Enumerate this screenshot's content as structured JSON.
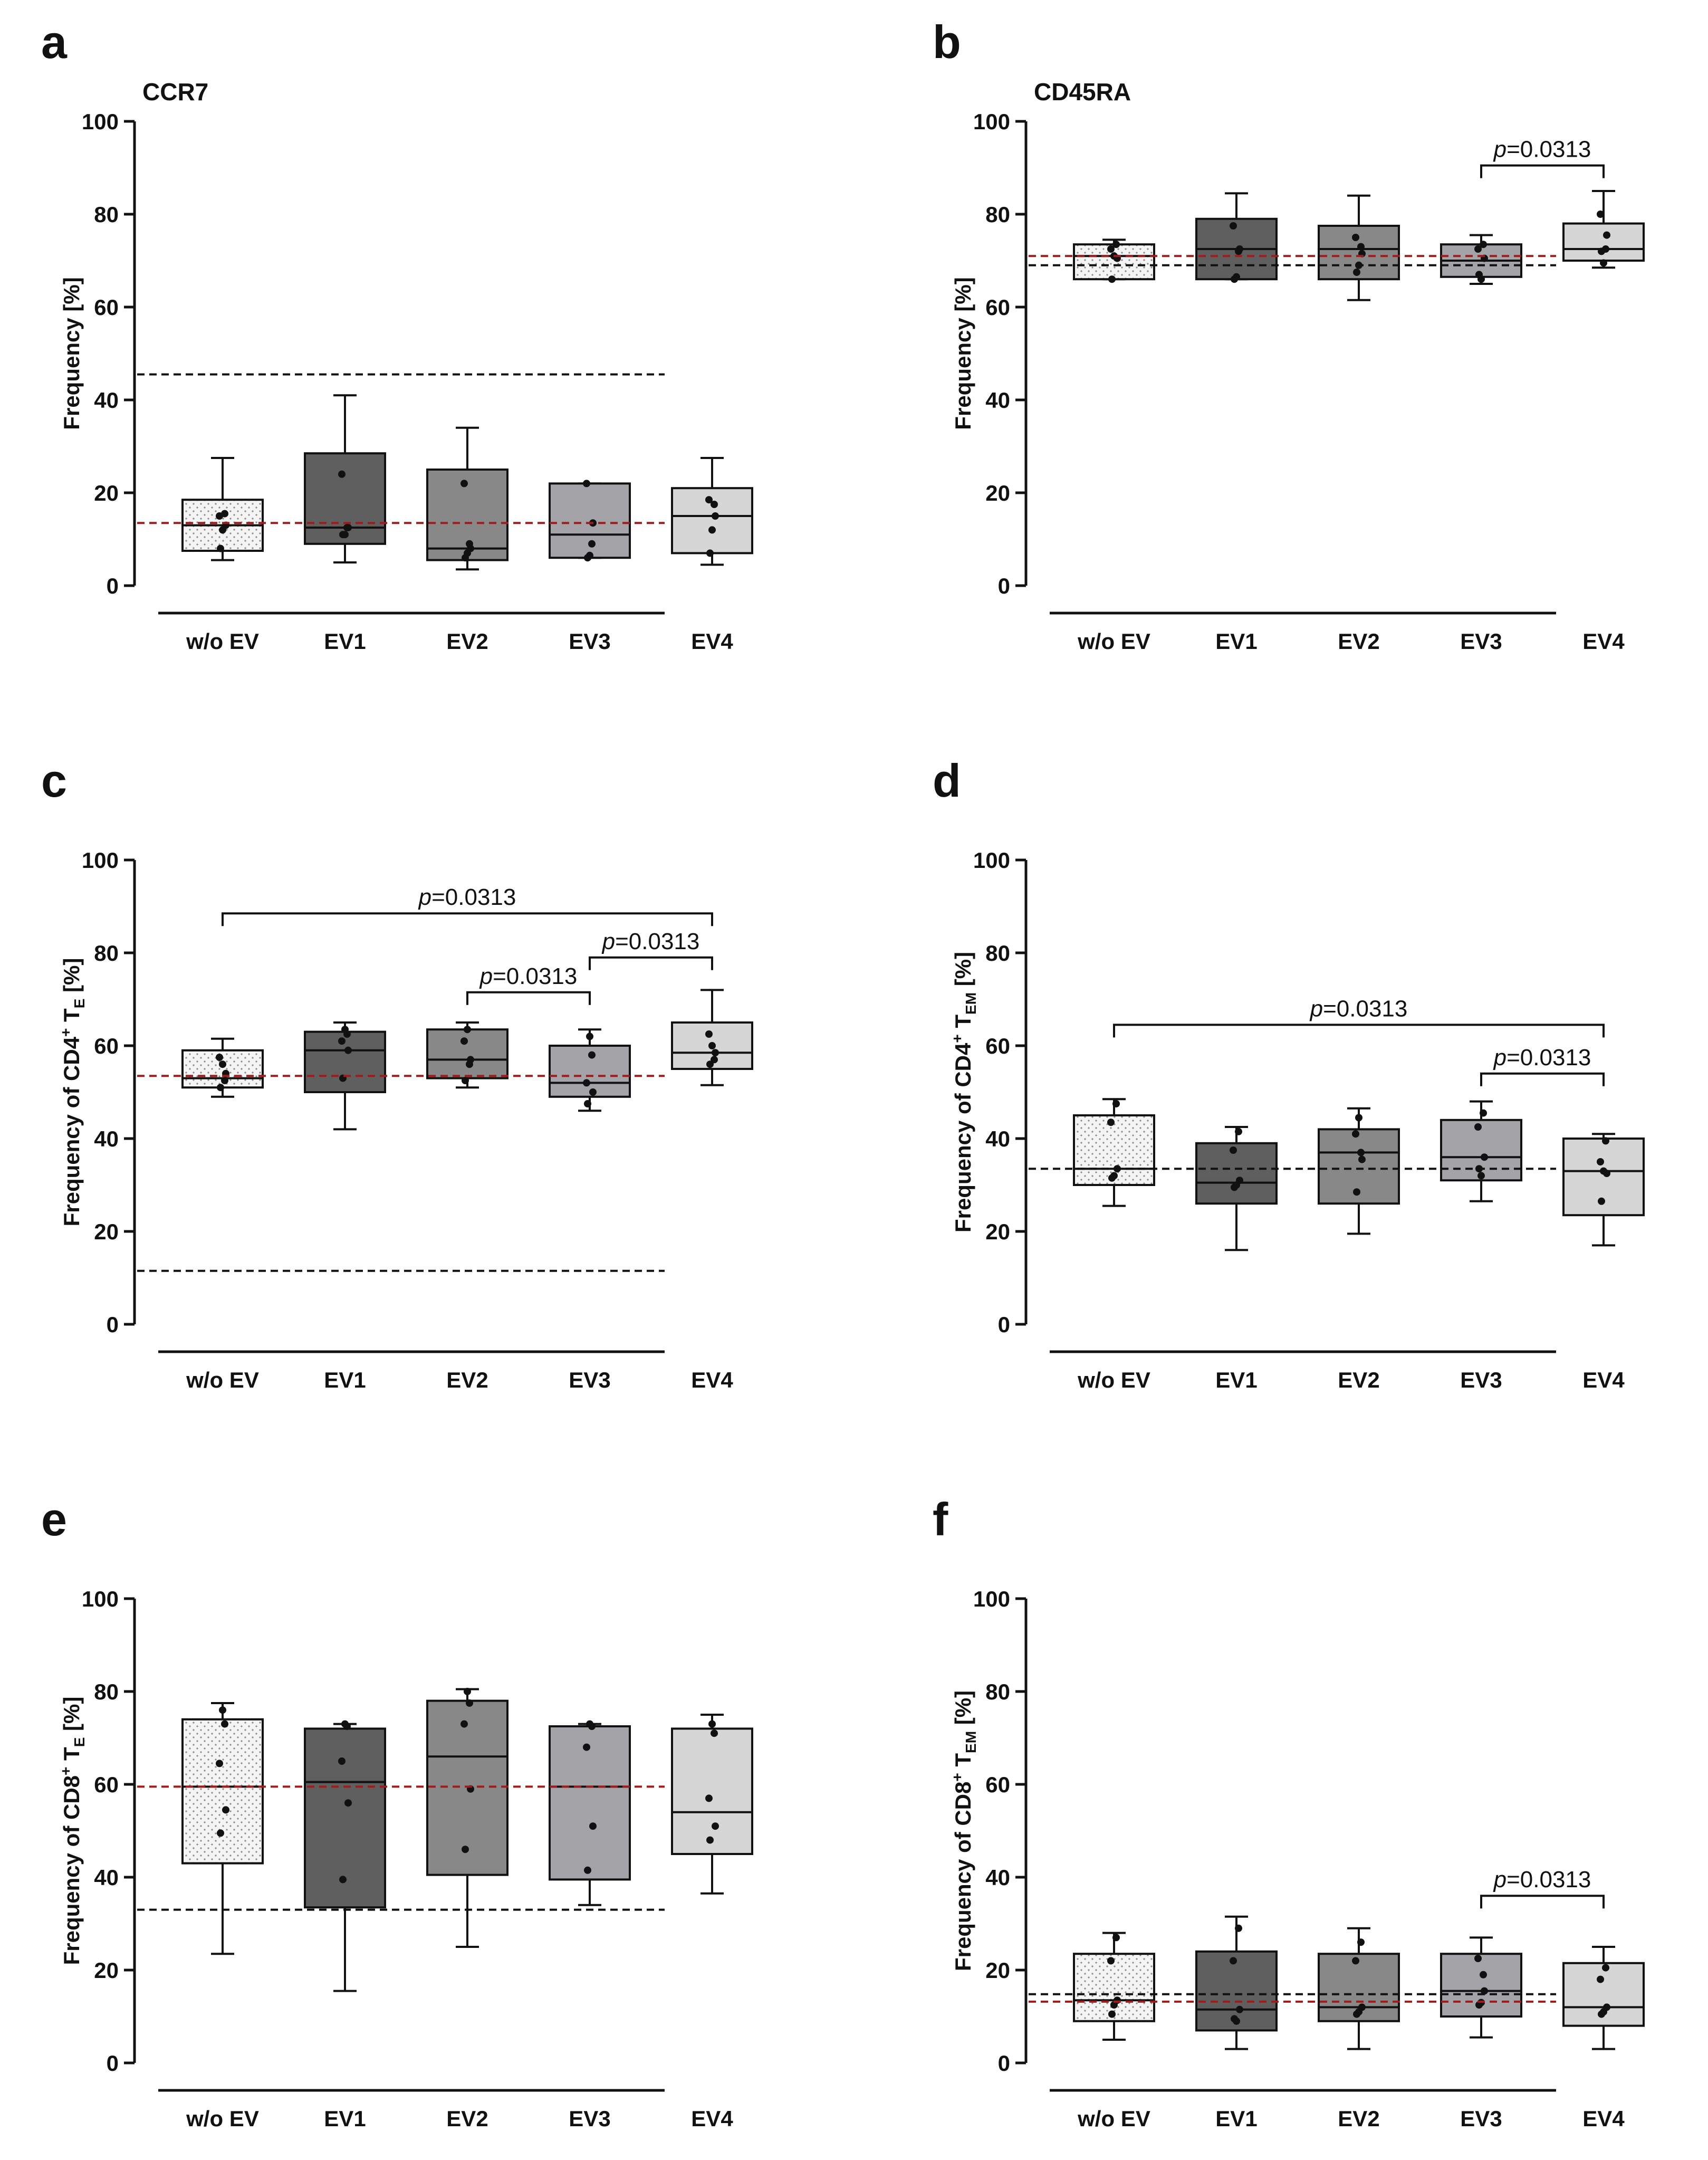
{
  "figure": {
    "background": "#ffffff"
  },
  "box_colors": {
    "w/o EV": "#f2f2f2",
    "EV1": "#5f5f5f",
    "EV2": "#888888",
    "EV3": "#a3a3a8",
    "EV4": "#d6d6d6"
  },
  "reference_line_colors": {
    "red": "#a01c1c",
    "black": "#111111"
  },
  "chart_data": [
    {
      "panel": "a",
      "type": "box",
      "title": "CCR7",
      "ylabel": "Frequency [%]",
      "ylim": [
        0,
        100
      ],
      "yticks": [
        0,
        20,
        40,
        60,
        80,
        100
      ],
      "categories": [
        "w/o EV",
        "EV1",
        "EV2",
        "EV3",
        "EV4"
      ],
      "boxes": [
        {
          "min": 5.5,
          "q1": 7.5,
          "median": 13,
          "q3": 18.5,
          "max": 27.5,
          "points": [
            8,
            13,
            15,
            15.5,
            12
          ]
        },
        {
          "min": 5,
          "q1": 9,
          "median": 12.5,
          "q3": 28.5,
          "max": 41,
          "points": [
            11,
            12.5,
            24,
            12.5,
            11
          ]
        },
        {
          "min": 3.5,
          "q1": 5.5,
          "median": 8,
          "q3": 25,
          "max": 34,
          "points": [
            6,
            8,
            22,
            9,
            7
          ]
        },
        {
          "min": 6,
          "q1": 6,
          "median": 11,
          "q3": 22,
          "max": 22,
          "points": [
            6,
            13.5,
            22,
            9,
            6.5
          ]
        },
        {
          "min": 4.5,
          "q1": 7,
          "median": 15,
          "q3": 21,
          "max": 27.5,
          "points": [
            7,
            15,
            18.5,
            17.5,
            12
          ]
        }
      ],
      "ref_lines": [
        {
          "y": 45.5,
          "color": "black"
        },
        {
          "y": 13.5,
          "color": "red"
        }
      ],
      "annotations": []
    },
    {
      "panel": "b",
      "type": "box",
      "title": "CD45RA",
      "ylabel": "Frequency [%]",
      "ylim": [
        0,
        100
      ],
      "yticks": [
        0,
        20,
        40,
        60,
        80,
        100
      ],
      "categories": [
        "w/o EV",
        "EV1",
        "EV2",
        "EV3",
        "EV4"
      ],
      "boxes": [
        {
          "min": 66,
          "q1": 66,
          "median": 71,
          "q3": 73.5,
          "max": 74.5,
          "points": [
            66,
            70.5,
            72.5,
            73.5,
            71
          ]
        },
        {
          "min": 66,
          "q1": 66,
          "median": 72.5,
          "q3": 79,
          "max": 84.5,
          "points": [
            66,
            72.5,
            77.5,
            72,
            66.5
          ]
        },
        {
          "min": 61.5,
          "q1": 66,
          "median": 72.5,
          "q3": 77.5,
          "max": 84,
          "points": [
            67.5,
            71.5,
            75,
            73,
            69
          ]
        },
        {
          "min": 65,
          "q1": 66.5,
          "median": 70,
          "q3": 73.5,
          "max": 75.5,
          "points": [
            67,
            70.5,
            72.5,
            73.5,
            66
          ]
        },
        {
          "min": 68.5,
          "q1": 70,
          "median": 72.5,
          "q3": 78,
          "max": 85,
          "points": [
            72,
            75.5,
            80,
            72.5,
            69.5
          ]
        }
      ],
      "ref_lines": [
        {
          "y": 71,
          "color": "red"
        },
        {
          "y": 69,
          "color": "black"
        }
      ],
      "annotations": [
        {
          "from": 3,
          "to": 4,
          "y": 90.5,
          "text": "=0.0313"
        }
      ]
    },
    {
      "panel": "c",
      "type": "box",
      "title": "",
      "ylabel": "Frequency of CD4⁺ T_E [%]",
      "ylabel_parts": {
        "main": "Frequency of CD4",
        "sup": "+",
        "t": " T",
        "sub": "E",
        "end": " [%]"
      },
      "ylim": [
        0,
        100
      ],
      "yticks": [
        0,
        20,
        40,
        60,
        80,
        100
      ],
      "categories": [
        "w/o EV",
        "EV1",
        "EV2",
        "EV3",
        "EV4"
      ],
      "boxes": [
        {
          "min": 49,
          "q1": 51,
          "median": 53,
          "q3": 59,
          "max": 61.5,
          "points": [
            51,
            54,
            57.5,
            52.5,
            56
          ]
        },
        {
          "min": 42,
          "q1": 50,
          "median": 59,
          "q3": 63,
          "max": 65,
          "points": [
            53,
            59,
            61,
            62.5,
            63.5
          ]
        },
        {
          "min": 51,
          "q1": 53,
          "median": 57,
          "q3": 63.5,
          "max": 65,
          "points": [
            52.5,
            57,
            61,
            56,
            63.5
          ]
        },
        {
          "min": 46,
          "q1": 49,
          "median": 52,
          "q3": 60,
          "max": 63.5,
          "points": [
            47.5,
            50,
            52,
            58,
            62
          ]
        },
        {
          "min": 51.5,
          "q1": 55,
          "median": 58.5,
          "q3": 65,
          "max": 72,
          "points": [
            56,
            58.5,
            62.5,
            57,
            60
          ]
        }
      ],
      "ref_lines": [
        {
          "y": 53.5,
          "color": "red"
        },
        {
          "y": 11.5,
          "color": "black"
        }
      ],
      "annotations": [
        {
          "from": 0,
          "to": 4,
          "y": 88.5,
          "text": "=0.0313"
        },
        {
          "from": 3,
          "to": 4,
          "y": 79,
          "text": "=0.0313"
        },
        {
          "from": 2,
          "to": 3,
          "y": 71.5,
          "text": "=0.0313"
        }
      ]
    },
    {
      "panel": "d",
      "type": "box",
      "title": "",
      "ylabel": "Frequency of CD4⁺ T_EM [%]",
      "ylabel_parts": {
        "main": "Frequency of CD4",
        "sup": "+",
        "t": " T",
        "sub": "EM",
        "end": " [%]"
      },
      "ylim": [
        0,
        100
      ],
      "yticks": [
        0,
        20,
        40,
        60,
        80,
        100
      ],
      "categories": [
        "w/o EV",
        "EV1",
        "EV2",
        "EV3",
        "EV4"
      ],
      "boxes": [
        {
          "min": 25.5,
          "q1": 30,
          "median": 33.5,
          "q3": 45,
          "max": 48.5,
          "points": [
            31.5,
            33.5,
            43.5,
            47.5,
            32
          ]
        },
        {
          "min": 16,
          "q1": 26,
          "median": 30.5,
          "q3": 39,
          "max": 42.5,
          "points": [
            29.5,
            31,
            37.5,
            41.5,
            30
          ]
        },
        {
          "min": 19.5,
          "q1": 26,
          "median": 37,
          "q3": 42,
          "max": 46.5,
          "points": [
            28.5,
            35.5,
            41,
            37,
            44.5
          ]
        },
        {
          "min": 26.5,
          "q1": 31,
          "median": 36,
          "q3": 44,
          "max": 48,
          "points": [
            33.5,
            36,
            42.5,
            45.5,
            32
          ]
        },
        {
          "min": 17,
          "q1": 23.5,
          "median": 33,
          "q3": 40,
          "max": 41,
          "points": [
            26.5,
            32.5,
            35,
            39.5,
            33
          ]
        }
      ],
      "ref_lines": [
        {
          "y": 33.5,
          "color": "black"
        }
      ],
      "annotations": [
        {
          "from": 0,
          "to": 4,
          "y": 64.5,
          "text": "=0.0313"
        },
        {
          "from": 3,
          "to": 4,
          "y": 54,
          "text": "=0.0313"
        }
      ]
    },
    {
      "panel": "e",
      "type": "box",
      "title": "",
      "ylabel": "Frequency of CD8⁺ T_E [%]",
      "ylabel_parts": {
        "main": "Frequency of CD8",
        "sup": "+",
        "t": " T",
        "sub": "E",
        "end": " [%]"
      },
      "ylim": [
        0,
        100
      ],
      "yticks": [
        0,
        20,
        40,
        60,
        80,
        100
      ],
      "categories": [
        "w/o EV",
        "EV1",
        "EV2",
        "EV3",
        "EV4"
      ],
      "boxes": [
        {
          "min": 23.5,
          "q1": 43,
          "median": 59.5,
          "q3": 74,
          "max": 77.5,
          "points": [
            49.5,
            54.5,
            64.5,
            73,
            76
          ]
        },
        {
          "min": 15.5,
          "q1": 33.5,
          "median": 60.5,
          "q3": 72,
          "max": 73,
          "points": [
            39.5,
            56,
            65,
            72.5,
            73
          ]
        },
        {
          "min": 25,
          "q1": 40.5,
          "median": 66,
          "q3": 78,
          "max": 80.5,
          "points": [
            46,
            59,
            73,
            77.5,
            80
          ]
        },
        {
          "min": 34,
          "q1": 39.5,
          "median": 59.5,
          "q3": 72.5,
          "max": 73,
          "points": [
            41.5,
            51,
            68,
            72.5,
            73
          ]
        },
        {
          "min": 36.5,
          "q1": 45,
          "median": 54,
          "q3": 72,
          "max": 75,
          "points": [
            48,
            51,
            57,
            71,
            73
          ]
        }
      ],
      "ref_lines": [
        {
          "y": 59.5,
          "color": "red"
        },
        {
          "y": 33,
          "color": "black"
        }
      ],
      "annotations": []
    },
    {
      "panel": "f",
      "type": "box",
      "title": "",
      "ylabel": "Frequency of CD8⁺ T_EM [%]",
      "ylabel_parts": {
        "main": "Frequency of CD8",
        "sup": "+",
        "t": " T",
        "sub": "EM",
        "end": " [%]"
      },
      "ylim": [
        0,
        100
      ],
      "yticks": [
        0,
        20,
        40,
        60,
        80,
        100
      ],
      "categories": [
        "w/o EV",
        "EV1",
        "EV2",
        "EV3",
        "EV4"
      ],
      "boxes": [
        {
          "min": 5,
          "q1": 9,
          "median": 13.5,
          "q3": 23.5,
          "max": 28,
          "points": [
            10.5,
            13.5,
            22,
            27,
            12.5
          ]
        },
        {
          "min": 3,
          "q1": 7,
          "median": 11.5,
          "q3": 24,
          "max": 31.5,
          "points": [
            9.5,
            11.5,
            22,
            29,
            9
          ]
        },
        {
          "min": 3,
          "q1": 9,
          "median": 12,
          "q3": 23.5,
          "max": 29,
          "points": [
            10.5,
            12,
            22,
            26,
            11
          ]
        },
        {
          "min": 5.5,
          "q1": 10,
          "median": 15.5,
          "q3": 23.5,
          "max": 27,
          "points": [
            12.5,
            15.5,
            22.5,
            19,
            13
          ]
        },
        {
          "min": 3,
          "q1": 8,
          "median": 12,
          "q3": 21.5,
          "max": 25,
          "points": [
            10.5,
            12,
            18,
            20.5,
            11
          ]
        }
      ],
      "ref_lines": [
        {
          "y": 14.8,
          "color": "black"
        },
        {
          "y": 13.2,
          "color": "red"
        }
      ],
      "annotations": [
        {
          "from": 3,
          "to": 4,
          "y": 36,
          "text": "=0.0313"
        }
      ]
    }
  ]
}
